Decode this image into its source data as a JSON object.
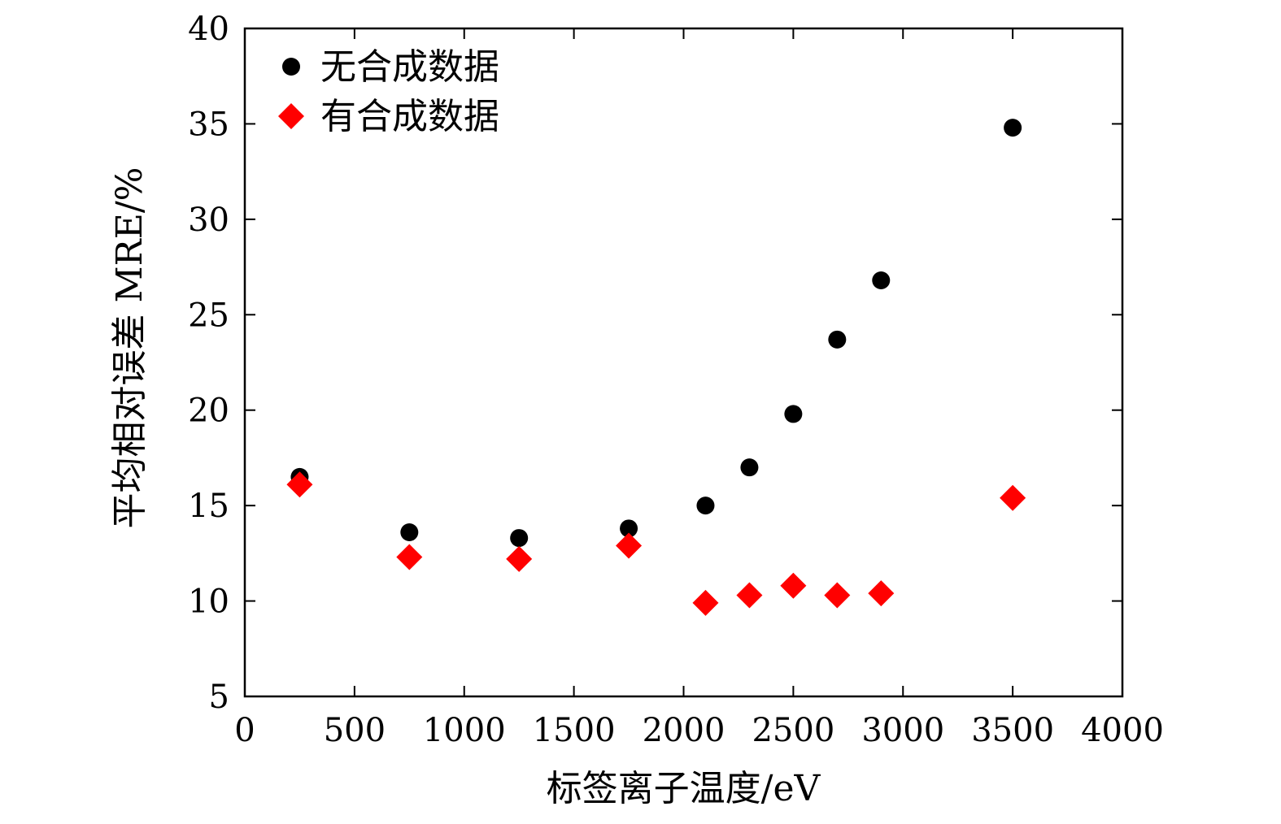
{
  "chart_data": {
    "type": "scatter",
    "title": "",
    "xlabel": "标签离子温度/eV",
    "ylabel": "平均相对误差 MRE/%",
    "xlim": [
      0,
      4000
    ],
    "ylim": [
      5,
      40
    ],
    "xticks": [
      0,
      500,
      1000,
      1500,
      2000,
      2500,
      3000,
      3500,
      4000
    ],
    "yticks": [
      5,
      10,
      15,
      20,
      25,
      30,
      35,
      40
    ],
    "grid": false,
    "legend_position": "top-left",
    "series": [
      {
        "name": "无合成数据",
        "marker": "circle",
        "color": "#000000",
        "x": [
          250,
          750,
          1250,
          1750,
          2100,
          2300,
          2500,
          2700,
          2900,
          3500
        ],
        "y": [
          16.5,
          13.6,
          13.3,
          13.8,
          15.0,
          17.0,
          19.8,
          23.7,
          26.8,
          34.8
        ]
      },
      {
        "name": "有合成数据",
        "marker": "diamond",
        "color": "#ff0000",
        "x": [
          250,
          750,
          1250,
          1750,
          2100,
          2300,
          2500,
          2700,
          2900,
          3500
        ],
        "y": [
          16.1,
          12.3,
          12.2,
          12.9,
          9.9,
          10.3,
          10.8,
          10.3,
          10.4,
          15.4
        ]
      }
    ]
  }
}
